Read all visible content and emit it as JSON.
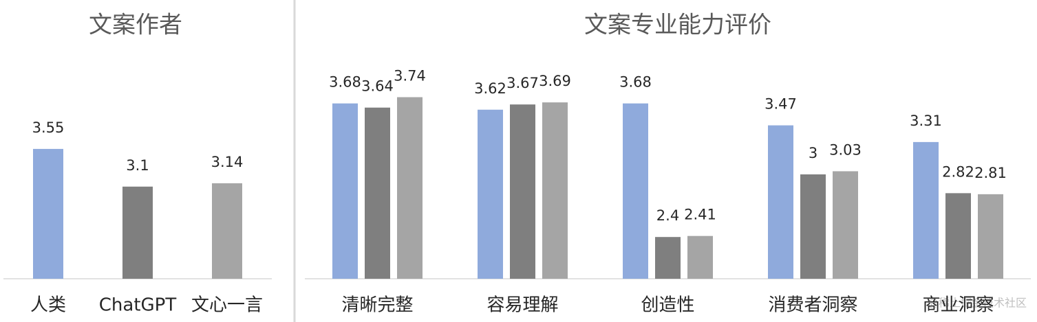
{
  "chart_data": [
    {
      "type": "bar",
      "title": "文案作者",
      "categories": [
        "人类",
        "ChatGPT",
        "文心一言"
      ],
      "values": [
        3.55,
        3.1,
        3.14
      ],
      "colors": [
        "#8faadc",
        "#7f7f7f",
        "#a5a5a5"
      ],
      "ylim": [
        2,
        4
      ]
    },
    {
      "type": "grouped-bar",
      "title": "文案专业能力评价",
      "categories": [
        "清晰完整",
        "容易理解",
        "创造性",
        "消费者洞察",
        "商业洞察"
      ],
      "series": [
        {
          "color": "#8faadc",
          "values": [
            3.68,
            3.62,
            3.68,
            3.47,
            3.31
          ]
        },
        {
          "color": "#7f7f7f",
          "values": [
            3.64,
            3.67,
            2.4,
            3,
            2.82
          ]
        },
        {
          "color": "#a5a5a5",
          "values": [
            3.74,
            3.69,
            2.41,
            3.03,
            2.81
          ]
        }
      ],
      "ylim": [
        2,
        4
      ]
    }
  ],
  "watermark": "@稀土掘金技术社区"
}
